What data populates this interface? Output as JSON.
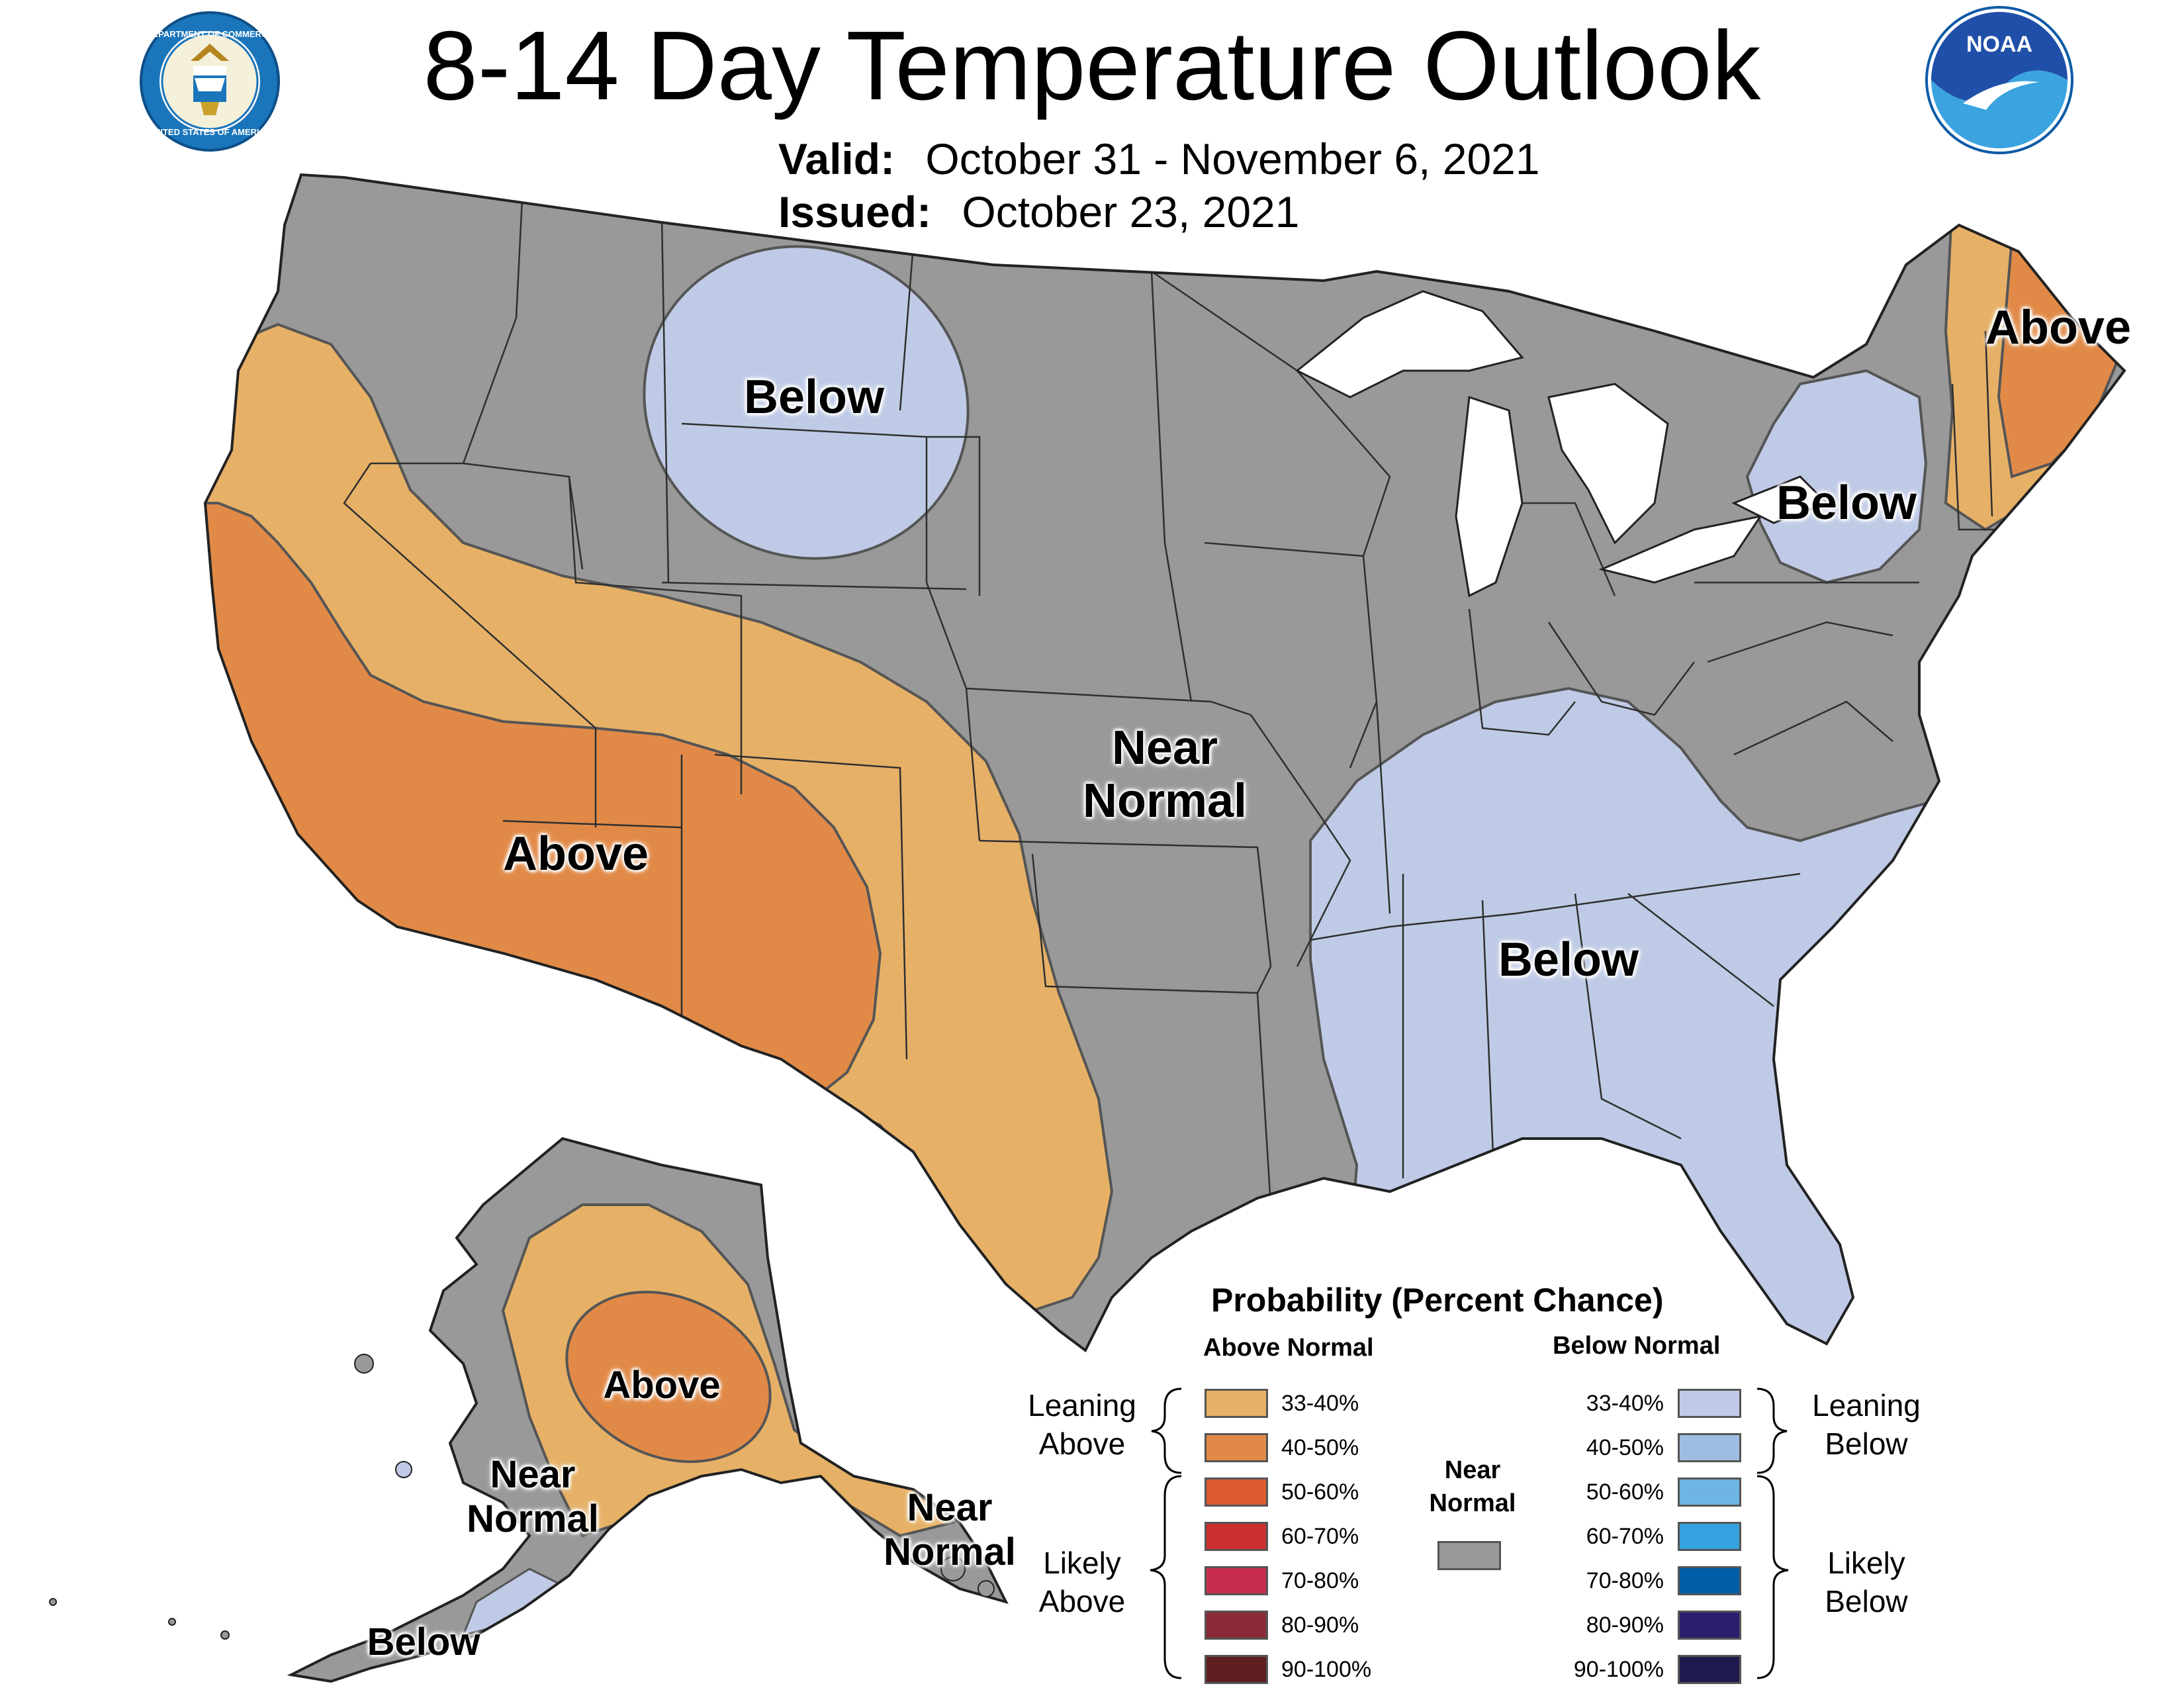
{
  "title": "8-14 Day Temperature Outlook",
  "valid_label": "Valid:",
  "valid_value": "October 31 - November 6, 2021",
  "issued_label": "Issued:",
  "issued_value": "October 23, 2021",
  "map_labels": {
    "below_north": "Below",
    "above_west": "Above",
    "near_normal_central_1": "Near",
    "near_normal_central_2": "Normal",
    "below_southeast": "Below",
    "below_ny": "Below",
    "above_maine": "Above",
    "above_alaska": "Above",
    "near_normal_ak_west_1": "Near",
    "near_normal_ak_west_2": "Normal",
    "near_normal_ak_se_1": "Near",
    "near_normal_ak_se_2": "Normal",
    "below_aleutians": "Below"
  },
  "colors": {
    "near_normal": "#999999",
    "above_33_40": "#e6b167",
    "above_40_50": "#e18a47",
    "below_33_40": "#bfcbe6",
    "lake_water": "#ffffff",
    "outline": "#555555"
  },
  "legend": {
    "title": "Probability (Percent Chance)",
    "above_header": "Above Normal",
    "below_header": "Below Normal",
    "near_header_1": "Near",
    "near_header_2": "Normal",
    "leaning_above_1": "Leaning",
    "leaning_above_2": "Above",
    "likely_above_1": "Likely",
    "likely_above_2": "Above",
    "leaning_below_1": "Leaning",
    "leaning_below_2": "Below",
    "likely_below_1": "Likely",
    "likely_below_2": "Below",
    "near_color": "#999999",
    "above": [
      {
        "label": "33-40%",
        "color": "#e6b167"
      },
      {
        "label": "40-50%",
        "color": "#e18a47"
      },
      {
        "label": "50-60%",
        "color": "#dc5a30"
      },
      {
        "label": "60-70%",
        "color": "#cc2f2f"
      },
      {
        "label": "70-80%",
        "color": "#c72e4e"
      },
      {
        "label": "80-90%",
        "color": "#8b2a37"
      },
      {
        "label": "90-100%",
        "color": "#5e1e1f"
      }
    ],
    "below": [
      {
        "label": "33-40%",
        "color": "#bfcbe6"
      },
      {
        "label": "40-50%",
        "color": "#9fbde3"
      },
      {
        "label": "50-60%",
        "color": "#6fb5e3"
      },
      {
        "label": "60-70%",
        "color": "#35a1de"
      },
      {
        "label": "70-80%",
        "color": "#005da8"
      },
      {
        "label": "80-90%",
        "color": "#2b1e6e"
      },
      {
        "label": "90-100%",
        "color": "#1f1a4d"
      }
    ]
  }
}
